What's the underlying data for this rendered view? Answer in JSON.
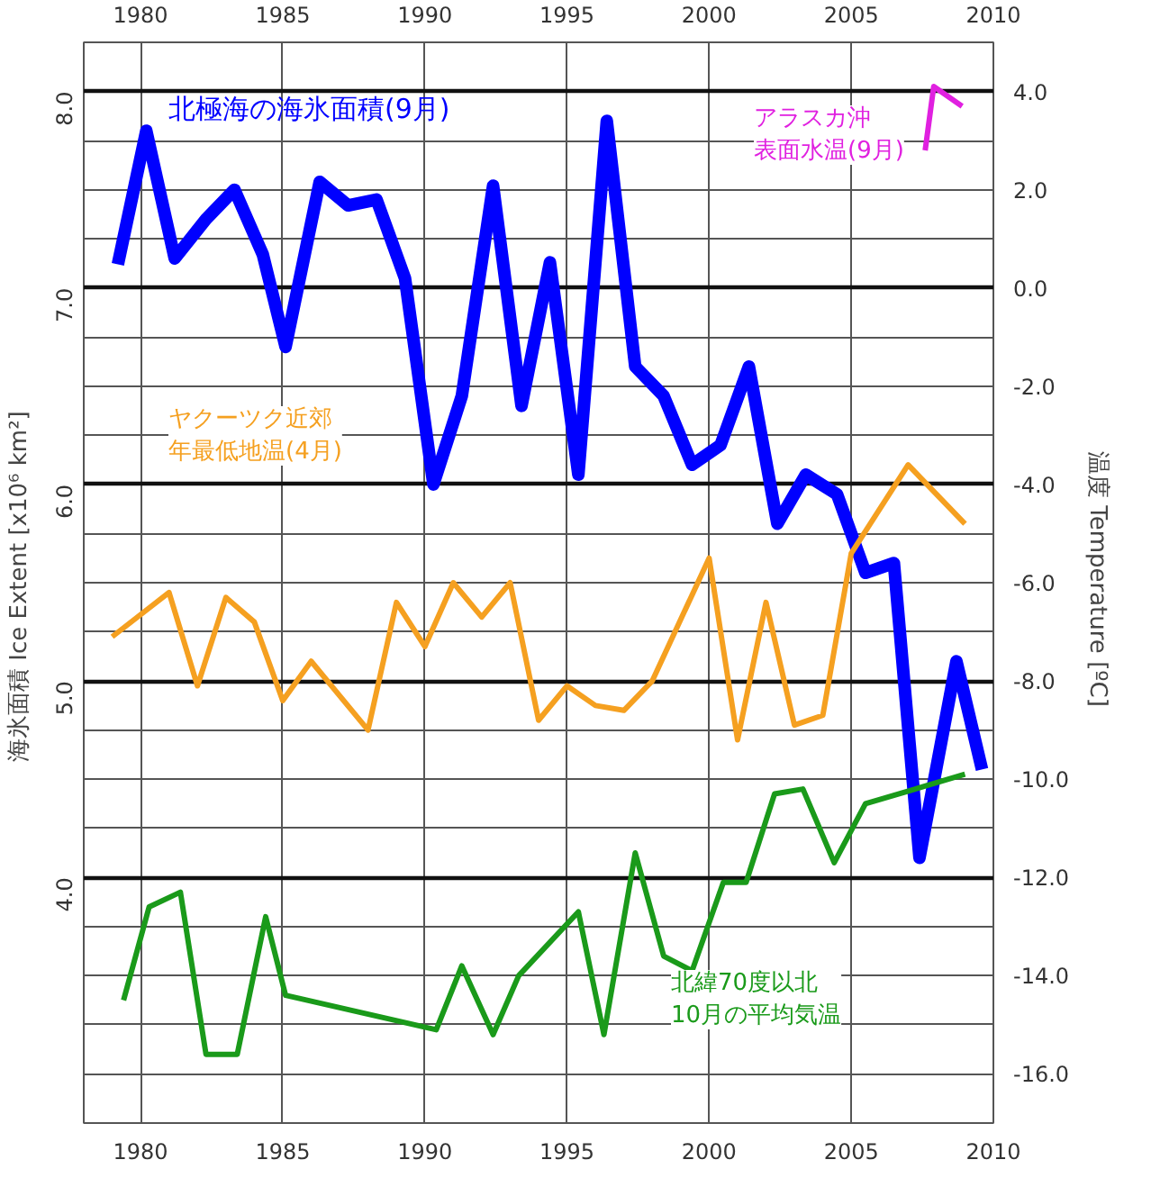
{
  "chart_data": {
    "type": "line",
    "xlabel": null,
    "ylabel": "海氷面積  Ice Extent [x10⁶ km²]",
    "y2label": "温度  Temperature [ºC]",
    "xlim": [
      1978,
      2010
    ],
    "xticks": [
      1980,
      1985,
      1990,
      1995,
      2000,
      2005,
      2010
    ],
    "x2lim": [
      1978,
      2010
    ],
    "x2ticks": [
      1980,
      1985,
      1990,
      1995,
      2000,
      2005,
      2010
    ],
    "ylim": [
      2.75,
      8.25
    ],
    "yticks": [
      {
        "value": 3.0,
        "label": null
      },
      {
        "value": 3.25,
        "label": null
      },
      {
        "value": 3.5,
        "label": null
      },
      {
        "value": 3.75,
        "label": null
      },
      {
        "value": 4.0,
        "label": "4.0"
      },
      {
        "value": 4.25,
        "label": null
      },
      {
        "value": 4.5,
        "label": null
      },
      {
        "value": 4.75,
        "label": null
      },
      {
        "value": 5.0,
        "label": "5.0"
      },
      {
        "value": 5.25,
        "label": null
      },
      {
        "value": 5.5,
        "label": null
      },
      {
        "value": 5.75,
        "label": null
      },
      {
        "value": 6.0,
        "label": "6.0"
      },
      {
        "value": 6.25,
        "label": null
      },
      {
        "value": 6.5,
        "label": null
      },
      {
        "value": 6.75,
        "label": null
      },
      {
        "value": 7.0,
        "label": "7.0"
      },
      {
        "value": 7.25,
        "label": null
      },
      {
        "value": 7.5,
        "label": null
      },
      {
        "value": 7.75,
        "label": null
      },
      {
        "value": 8.0,
        "label": "8.0"
      }
    ],
    "y2lim": [
      -17,
      5
    ],
    "y2ticks": [
      {
        "value": 4,
        "label": "4.0"
      },
      {
        "value": 2,
        "label": "2.0"
      },
      {
        "value": 0,
        "label": "0.0"
      },
      {
        "value": -2,
        "label": "-2.0"
      },
      {
        "value": -4,
        "label": "-4.0"
      },
      {
        "value": -6,
        "label": "-6.0"
      },
      {
        "value": -8,
        "label": "-8.0"
      },
      {
        "value": -10,
        "label": "-10.0"
      },
      {
        "value": -12,
        "label": "-12.0"
      },
      {
        "value": -14,
        "label": "-14.0"
      },
      {
        "value": -16,
        "label": "-16.0"
      }
    ],
    "grid": true,
    "marker": "none",
    "line_style": "solid",
    "series": [
      {
        "name": "北極海の海氷面積(9月)",
        "color": "#0000ff",
        "x": [
          1979.2,
          1980.2,
          1981.2,
          1982.3,
          1983.3,
          1984.3,
          1985.1,
          1986.3,
          1987.3,
          1988.3,
          1989.3,
          1990.3,
          1991.3,
          1992.4,
          1993.4,
          1994.4,
          1995.4,
          1996.4,
          1997.4,
          1998.4,
          1999.4,
          2000.4,
          2001.4,
          2002.4,
          2003.4,
          2004.5,
          2005.5,
          2006.5,
          2007.4,
          2008.7,
          2009.6
        ],
        "values": [
          7.12,
          7.8,
          7.15,
          7.35,
          7.5,
          7.17,
          6.7,
          7.54,
          7.42,
          7.45,
          7.05,
          6.0,
          6.45,
          7.52,
          6.4,
          7.13,
          6.05,
          7.85,
          6.6,
          6.45,
          6.1,
          6.2,
          6.6,
          5.8,
          6.05,
          5.95,
          5.55,
          5.6,
          4.1,
          5.1,
          4.55
        ]
      },
      {
        "name": "アラスカ沖表面水温(9月)",
        "color": "#e020e0",
        "axis": "y2",
        "x": [
          2007.6,
          2007.9,
          2008.9
        ],
        "values": [
          2.8,
          4.1,
          3.7
        ]
      },
      {
        "name": "ヤクーツク近郊年最低地温(4月)",
        "color": "#f5a020",
        "axis": "y2",
        "x": [
          1979,
          1981,
          1982,
          1983,
          1984,
          1985,
          1986,
          1988,
          1989,
          1990,
          1991,
          1992,
          1993,
          1994,
          1995,
          1996,
          1997,
          1998,
          2000,
          2001,
          2002,
          2003,
          2004,
          2005,
          2007,
          2009
        ],
        "values": [
          -7.1,
          -6.2,
          -8.1,
          -6.3,
          -6.8,
          -8.4,
          -7.6,
          -9.0,
          -6.4,
          -7.3,
          -6.0,
          -6.7,
          -6.0,
          -8.8,
          -8.1,
          -8.5,
          -8.6,
          -8.0,
          -5.5,
          -9.2,
          -6.4,
          -8.9,
          -8.7,
          -5.4,
          -3.6,
          -4.8
        ]
      },
      {
        "name": "北緯70度以北10月の平均気温",
        "color": "#1a9a1a",
        "axis": "y2",
        "x": [
          1979.4,
          1980.3,
          1981.4,
          1982.3,
          1983.4,
          1984.4,
          1985.1,
          1990.4,
          1991.3,
          1992.4,
          1993.3,
          1995.4,
          1996.3,
          1997.4,
          1998.4,
          1999.4,
          2000.5,
          2001.3,
          2002.3,
          2003.3,
          2004.4,
          2005.5,
          2009.0
        ],
        "values": [
          -14.5,
          -12.6,
          -12.3,
          -15.6,
          -15.6,
          -12.8,
          -14.4,
          -15.1,
          -13.8,
          -15.2,
          -14.0,
          -12.7,
          -15.2,
          -11.5,
          -13.6,
          -13.9,
          -12.1,
          -12.1,
          -10.3,
          -10.2,
          -11.7,
          -10.5,
          -9.9
        ]
      }
    ]
  }
}
